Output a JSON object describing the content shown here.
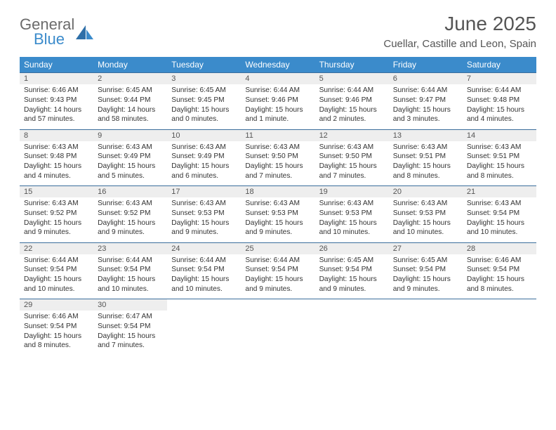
{
  "logo": {
    "text1": "General",
    "text2": "Blue",
    "color1": "#6b6b6b",
    "color2": "#3b8bcb"
  },
  "title": "June 2025",
  "subtitle": "Cuellar, Castille and Leon, Spain",
  "header_bg": "#3b8bcb",
  "header_fg": "#ffffff",
  "daynum_bg": "#eeeeee",
  "rule_color": "#3b6e9c",
  "days": [
    "Sunday",
    "Monday",
    "Tuesday",
    "Wednesday",
    "Thursday",
    "Friday",
    "Saturday"
  ],
  "weeks": [
    [
      {
        "n": "1",
        "sr": "Sunrise: 6:46 AM",
        "ss": "Sunset: 9:43 PM",
        "dl": "Daylight: 14 hours and 57 minutes."
      },
      {
        "n": "2",
        "sr": "Sunrise: 6:45 AM",
        "ss": "Sunset: 9:44 PM",
        "dl": "Daylight: 14 hours and 58 minutes."
      },
      {
        "n": "3",
        "sr": "Sunrise: 6:45 AM",
        "ss": "Sunset: 9:45 PM",
        "dl": "Daylight: 15 hours and 0 minutes."
      },
      {
        "n": "4",
        "sr": "Sunrise: 6:44 AM",
        "ss": "Sunset: 9:46 PM",
        "dl": "Daylight: 15 hours and 1 minute."
      },
      {
        "n": "5",
        "sr": "Sunrise: 6:44 AM",
        "ss": "Sunset: 9:46 PM",
        "dl": "Daylight: 15 hours and 2 minutes."
      },
      {
        "n": "6",
        "sr": "Sunrise: 6:44 AM",
        "ss": "Sunset: 9:47 PM",
        "dl": "Daylight: 15 hours and 3 minutes."
      },
      {
        "n": "7",
        "sr": "Sunrise: 6:44 AM",
        "ss": "Sunset: 9:48 PM",
        "dl": "Daylight: 15 hours and 4 minutes."
      }
    ],
    [
      {
        "n": "8",
        "sr": "Sunrise: 6:43 AM",
        "ss": "Sunset: 9:48 PM",
        "dl": "Daylight: 15 hours and 4 minutes."
      },
      {
        "n": "9",
        "sr": "Sunrise: 6:43 AM",
        "ss": "Sunset: 9:49 PM",
        "dl": "Daylight: 15 hours and 5 minutes."
      },
      {
        "n": "10",
        "sr": "Sunrise: 6:43 AM",
        "ss": "Sunset: 9:49 PM",
        "dl": "Daylight: 15 hours and 6 minutes."
      },
      {
        "n": "11",
        "sr": "Sunrise: 6:43 AM",
        "ss": "Sunset: 9:50 PM",
        "dl": "Daylight: 15 hours and 7 minutes."
      },
      {
        "n": "12",
        "sr": "Sunrise: 6:43 AM",
        "ss": "Sunset: 9:50 PM",
        "dl": "Daylight: 15 hours and 7 minutes."
      },
      {
        "n": "13",
        "sr": "Sunrise: 6:43 AM",
        "ss": "Sunset: 9:51 PM",
        "dl": "Daylight: 15 hours and 8 minutes."
      },
      {
        "n": "14",
        "sr": "Sunrise: 6:43 AM",
        "ss": "Sunset: 9:51 PM",
        "dl": "Daylight: 15 hours and 8 minutes."
      }
    ],
    [
      {
        "n": "15",
        "sr": "Sunrise: 6:43 AM",
        "ss": "Sunset: 9:52 PM",
        "dl": "Daylight: 15 hours and 9 minutes."
      },
      {
        "n": "16",
        "sr": "Sunrise: 6:43 AM",
        "ss": "Sunset: 9:52 PM",
        "dl": "Daylight: 15 hours and 9 minutes."
      },
      {
        "n": "17",
        "sr": "Sunrise: 6:43 AM",
        "ss": "Sunset: 9:53 PM",
        "dl": "Daylight: 15 hours and 9 minutes."
      },
      {
        "n": "18",
        "sr": "Sunrise: 6:43 AM",
        "ss": "Sunset: 9:53 PM",
        "dl": "Daylight: 15 hours and 9 minutes."
      },
      {
        "n": "19",
        "sr": "Sunrise: 6:43 AM",
        "ss": "Sunset: 9:53 PM",
        "dl": "Daylight: 15 hours and 10 minutes."
      },
      {
        "n": "20",
        "sr": "Sunrise: 6:43 AM",
        "ss": "Sunset: 9:53 PM",
        "dl": "Daylight: 15 hours and 10 minutes."
      },
      {
        "n": "21",
        "sr": "Sunrise: 6:43 AM",
        "ss": "Sunset: 9:54 PM",
        "dl": "Daylight: 15 hours and 10 minutes."
      }
    ],
    [
      {
        "n": "22",
        "sr": "Sunrise: 6:44 AM",
        "ss": "Sunset: 9:54 PM",
        "dl": "Daylight: 15 hours and 10 minutes."
      },
      {
        "n": "23",
        "sr": "Sunrise: 6:44 AM",
        "ss": "Sunset: 9:54 PM",
        "dl": "Daylight: 15 hours and 10 minutes."
      },
      {
        "n": "24",
        "sr": "Sunrise: 6:44 AM",
        "ss": "Sunset: 9:54 PM",
        "dl": "Daylight: 15 hours and 10 minutes."
      },
      {
        "n": "25",
        "sr": "Sunrise: 6:44 AM",
        "ss": "Sunset: 9:54 PM",
        "dl": "Daylight: 15 hours and 9 minutes."
      },
      {
        "n": "26",
        "sr": "Sunrise: 6:45 AM",
        "ss": "Sunset: 9:54 PM",
        "dl": "Daylight: 15 hours and 9 minutes."
      },
      {
        "n": "27",
        "sr": "Sunrise: 6:45 AM",
        "ss": "Sunset: 9:54 PM",
        "dl": "Daylight: 15 hours and 9 minutes."
      },
      {
        "n": "28",
        "sr": "Sunrise: 6:46 AM",
        "ss": "Sunset: 9:54 PM",
        "dl": "Daylight: 15 hours and 8 minutes."
      }
    ],
    [
      {
        "n": "29",
        "sr": "Sunrise: 6:46 AM",
        "ss": "Sunset: 9:54 PM",
        "dl": "Daylight: 15 hours and 8 minutes."
      },
      {
        "n": "30",
        "sr": "Sunrise: 6:47 AM",
        "ss": "Sunset: 9:54 PM",
        "dl": "Daylight: 15 hours and 7 minutes."
      },
      null,
      null,
      null,
      null,
      null
    ]
  ]
}
